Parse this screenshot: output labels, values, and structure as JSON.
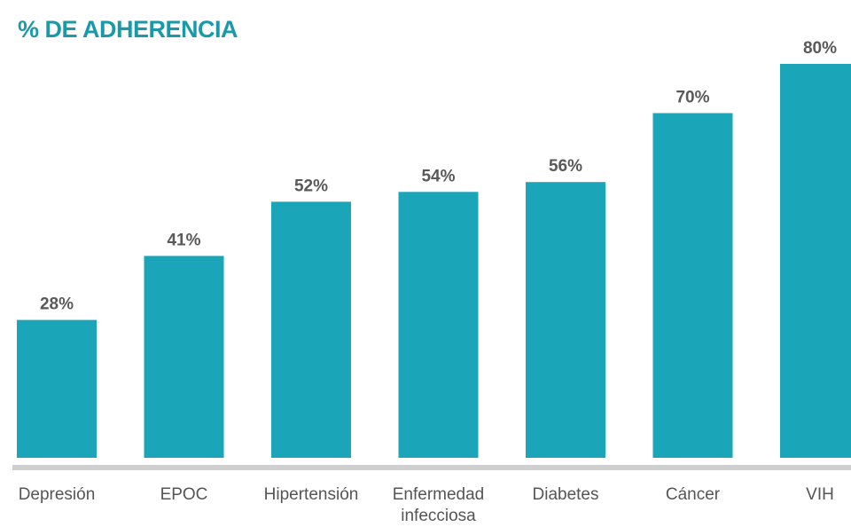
{
  "chart_data": {
    "type": "bar",
    "title": "% DE ADHERENCIA",
    "categories": [
      "Depresión",
      "EPOC",
      "Hipertensión",
      "Enfermedad infecciosa",
      "Diabetes",
      "Cáncer",
      "VIH"
    ],
    "values": [
      28,
      41,
      52,
      54,
      56,
      70,
      80
    ],
    "value_labels": [
      "28%",
      "41%",
      "52%",
      "54%",
      "56%",
      "70%",
      "80%"
    ],
    "color": "#1aa5b8"
  }
}
